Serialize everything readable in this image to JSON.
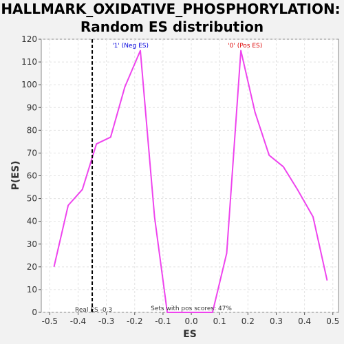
{
  "chart_data": {
    "type": "line",
    "title_line1": "HALLMARK_OXIDATIVE_PHOSPHORYLATION:",
    "title_line2": "Random ES distribution",
    "xlabel": "ES",
    "ylabel": "P(ES)",
    "xlim": [
      -0.53,
      0.52
    ],
    "ylim": [
      0,
      120
    ],
    "xticks": [
      "-0.5",
      "-0.4",
      "-0.3",
      "-0.2",
      "-0.1",
      "0.0",
      "0.1",
      "0.2",
      "0.3",
      "0.4",
      "0.5"
    ],
    "yticks": [
      "0",
      "10",
      "20",
      "30",
      "40",
      "50",
      "60",
      "70",
      "80",
      "90",
      "100",
      "110",
      "120"
    ],
    "grid": true,
    "series": [
      {
        "color": "#ee44ee",
        "x": [
          -0.485,
          -0.435,
          -0.385,
          -0.335,
          -0.285,
          -0.235,
          -0.18,
          -0.13,
          -0.085,
          -0.035,
          0.015,
          0.075,
          0.125,
          0.175,
          0.225,
          0.275,
          0.325,
          0.375,
          0.43,
          0.48
        ],
        "y": [
          20,
          47,
          54,
          74,
          77,
          99,
          115,
          42,
          0,
          0,
          0,
          0,
          26,
          115,
          88,
          69,
          64,
          54,
          42,
          14
        ]
      }
    ],
    "real_es": {
      "x": -0.35,
      "label": "Real ES -0.3"
    },
    "neg_label": {
      "text": "'1' (Neg ES)",
      "x": -0.215,
      "color": "#0000dd"
    },
    "pos_label": {
      "text": "'0' (Pos ES)",
      "x": 0.19,
      "color": "#dd0000"
    },
    "pos_scores_text": "Sets with pos scores: 47%"
  }
}
